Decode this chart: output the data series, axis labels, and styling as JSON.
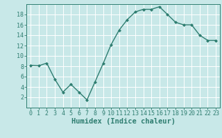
{
  "x": [
    0,
    1,
    2,
    3,
    4,
    5,
    6,
    7,
    8,
    9,
    10,
    11,
    12,
    13,
    14,
    15,
    16,
    17,
    18,
    19,
    20,
    21,
    22,
    23
  ],
  "y": [
    8.2,
    8.1,
    8.6,
    5.5,
    3.0,
    4.5,
    3.0,
    1.5,
    5.0,
    8.5,
    12.2,
    15.0,
    17.0,
    18.5,
    19.0,
    19.0,
    19.5,
    18.0,
    16.5,
    16.0,
    16.0,
    14.0,
    13.0,
    13.0
  ],
  "line_color": "#2e7d70",
  "marker": "D",
  "marker_size": 2.0,
  "bg_color": "#c8e8e8",
  "grid_color": "#ffffff",
  "xlabel": "Humidex (Indice chaleur)",
  "xlim": [
    -0.5,
    23.5
  ],
  "ylim": [
    0,
    20
  ],
  "yticks": [
    2,
    4,
    6,
    8,
    10,
    12,
    14,
    16,
    18
  ],
  "xticks": [
    0,
    1,
    2,
    3,
    4,
    5,
    6,
    7,
    8,
    9,
    10,
    11,
    12,
    13,
    14,
    15,
    16,
    17,
    18,
    19,
    20,
    21,
    22,
    23
  ],
  "xlabel_fontsize": 7.5,
  "tick_fontsize": 6.0,
  "linewidth": 1.0
}
